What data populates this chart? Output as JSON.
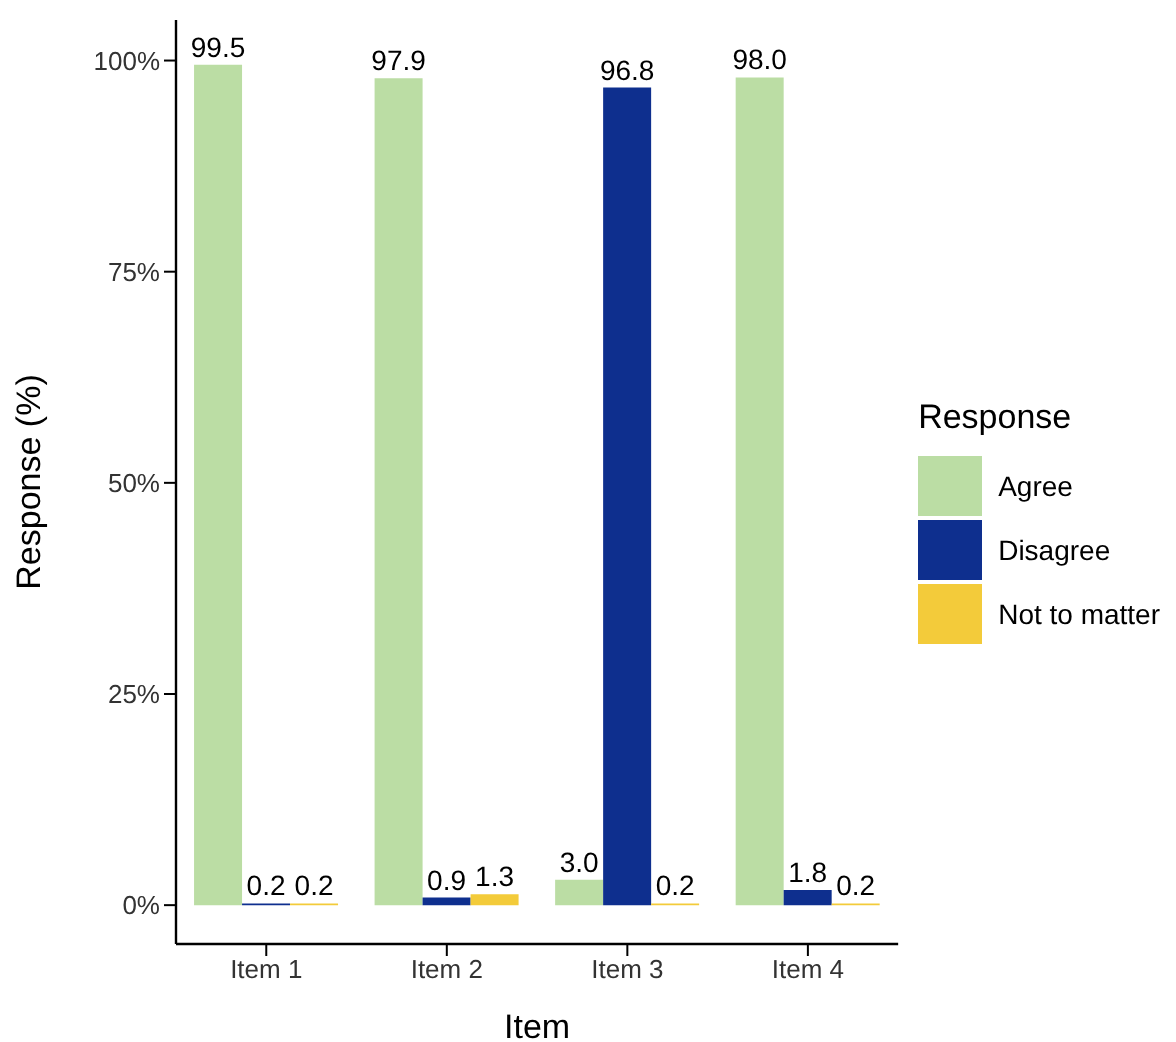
{
  "chart_data": {
    "type": "bar",
    "xlabel": "Item",
    "ylabel": "Response (%)",
    "legend_title": "Response",
    "categories": [
      "Item 1",
      "Item 2",
      "Item 3",
      "Item 4"
    ],
    "series": [
      {
        "name": "Agree",
        "color": "#bbdda4",
        "values": [
          99.5,
          97.9,
          3.0,
          98.0
        ],
        "value_labels": [
          "99.5",
          "97.9",
          "3.0",
          "98.0"
        ]
      },
      {
        "name": "Disagree",
        "color": "#0e2f8e",
        "values": [
          0.2,
          0.9,
          96.8,
          1.8
        ],
        "value_labels": [
          "0.2",
          "0.9",
          "96.8",
          "1.8"
        ]
      },
      {
        "name": "Not to matter",
        "color": "#f3cb3a",
        "values": [
          0.2,
          1.3,
          0.2,
          0.2
        ],
        "value_labels": [
          "0.2",
          "1.3",
          "0.2",
          "0.2"
        ]
      }
    ],
    "ylim": [
      -4.6,
      104.8
    ],
    "yticks": [
      {
        "value": 0,
        "label": "0%"
      },
      {
        "value": 25,
        "label": "25%"
      },
      {
        "value": 50,
        "label": "50%"
      },
      {
        "value": 75,
        "label": "75%"
      },
      {
        "value": 100,
        "label": "100%"
      }
    ],
    "grid": false,
    "legend": "right"
  }
}
